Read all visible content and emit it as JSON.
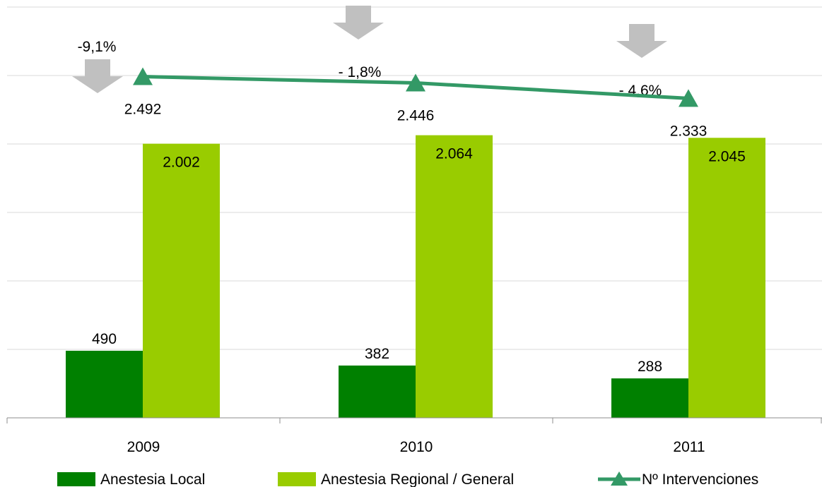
{
  "chart_data": {
    "type": "bar",
    "categories": [
      "2009",
      "2010",
      "2011"
    ],
    "series": [
      {
        "name": "Anestesia Local",
        "type": "bar",
        "values": [
          490,
          382,
          288
        ],
        "labels": [
          "490",
          "382",
          "288"
        ],
        "color": "#008000"
      },
      {
        "name": "Anestesia Regional / General",
        "type": "bar",
        "values": [
          2002,
          2064,
          2045
        ],
        "labels": [
          "2.002",
          "2.064",
          "2.045"
        ],
        "color": "#99cc00"
      },
      {
        "name": "Nº Intervenciones",
        "type": "line",
        "marker": "triangle",
        "values": [
          2492,
          2446,
          2333
        ],
        "labels": [
          "2.492",
          "2.446",
          "2.333"
        ],
        "color": "#339966"
      }
    ],
    "annotations": [
      {
        "text": "-9,1%",
        "category": "2009",
        "icon": "down-arrow"
      },
      {
        "text": "- 1,8%",
        "category": "2010",
        "icon": "down-arrow"
      },
      {
        "text": "- 4,6%",
        "category": "2011",
        "icon": "down-arrow"
      }
    ],
    "ylim": [
      0,
      3000
    ],
    "grid": true,
    "legend_position": "bottom",
    "arrow_color": "#c0c0c0",
    "gridline_color": "#d9d9d9"
  }
}
